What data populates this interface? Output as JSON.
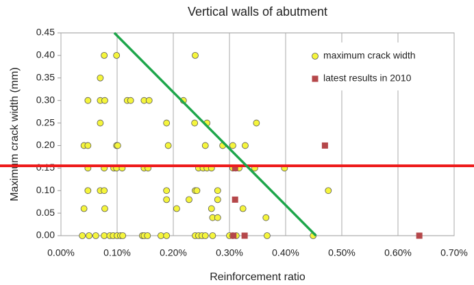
{
  "chart_data": {
    "type": "scatter",
    "title": "Vertical walls of abutment",
    "x_label": "Reinforcement ratio",
    "y_label": "Maximum crack width (mm)",
    "xlim": [
      0,
      0.7
    ],
    "ylim": [
      0,
      0.45
    ],
    "xticks": [
      {
        "value": 0,
        "label": "0.00%"
      },
      {
        "value": 0.1,
        "label": "0.10%"
      },
      {
        "value": 0.2,
        "label": "0.20%"
      },
      {
        "value": 0.3,
        "label": "0.30%"
      },
      {
        "value": 0.4,
        "label": "0.40%"
      },
      {
        "value": 0.5,
        "label": "0.50%"
      },
      {
        "value": 0.6,
        "label": "0.60%"
      },
      {
        "value": 0.7,
        "label": "0.70%"
      }
    ],
    "yticks": [
      {
        "value": 0,
        "label": "0.00"
      },
      0.05,
      {
        "value": 0.1,
        "label": "0.10"
      },
      0.15,
      {
        "value": 0.2,
        "label": "0.20"
      },
      0.25,
      {
        "value": 0.3,
        "label": "0.30"
      },
      0.35,
      {
        "value": 0.4,
        "label": "0.40"
      },
      0.45
    ],
    "grid": "x",
    "legend": "top-right",
    "series": [
      {
        "name": "maximum crack width",
        "color": "#f5f53c",
        "marker": "circle",
        "x": [
          0.038,
          0.05,
          0.062,
          0.077,
          0.087,
          0.093,
          0.1,
          0.106,
          0.11,
          0.145,
          0.148,
          0.154,
          0.178,
          0.188,
          0.239,
          0.245,
          0.251,
          0.257,
          0.27,
          0.3,
          0.306,
          0.312,
          0.367,
          0.449,
          0.27,
          0.279,
          0.365,
          0.041,
          0.078,
          0.206,
          0.268,
          0.324,
          0.188,
          0.228,
          0.279,
          0.048,
          0.07,
          0.077,
          0.188,
          0.239,
          0.242,
          0.279,
          0.476,
          0.048,
          0.077,
          0.094,
          0.099,
          0.109,
          0.148,
          0.155,
          0.245,
          0.253,
          0.26,
          0.268,
          0.306,
          0.311,
          0.317,
          0.345,
          0.398,
          0.041,
          0.048,
          0.099,
          0.101,
          0.191,
          0.257,
          0.288,
          0.306,
          0.328,
          0.07,
          0.188,
          0.238,
          0.26,
          0.348,
          0.048,
          0.07,
          0.078,
          0.118,
          0.124,
          0.148,
          0.157,
          0.218,
          0.07,
          0.077,
          0.099,
          0.239
        ],
        "values": [
          0,
          0,
          0,
          0,
          0,
          0,
          0,
          0,
          0,
          0,
          0,
          0,
          0,
          0,
          0,
          0,
          0,
          0,
          0,
          0,
          0,
          0,
          0,
          0,
          0.04,
          0.04,
          0.04,
          0.06,
          0.06,
          0.06,
          0.06,
          0.06,
          0.08,
          0.08,
          0.08,
          0.1,
          0.1,
          0.1,
          0.1,
          0.1,
          0.1,
          0.1,
          0.1,
          0.15,
          0.15,
          0.15,
          0.15,
          0.15,
          0.15,
          0.15,
          0.15,
          0.15,
          0.15,
          0.15,
          0.15,
          0.15,
          0.15,
          0.15,
          0.15,
          0.2,
          0.2,
          0.2,
          0.2,
          0.2,
          0.2,
          0.2,
          0.2,
          0.2,
          0.25,
          0.25,
          0.25,
          0.25,
          0.25,
          0.3,
          0.3,
          0.3,
          0.3,
          0.3,
          0.3,
          0.3,
          0.3,
          0.35,
          0.4,
          0.4,
          0.4
        ]
      },
      {
        "name": "latest results in 2010",
        "color": "#b5474a",
        "marker": "square",
        "x": [
          0.31,
          0.31,
          0.307,
          0.327,
          0.47,
          0.638
        ],
        "values": [
          0.15,
          0.08,
          0,
          0,
          0.2,
          0
        ]
      }
    ],
    "reference_line": {
      "y": 0.155,
      "color": "#ee1c1c"
    },
    "trend_line": {
      "x": [
        0.095,
        0.454
      ],
      "y": [
        0.45,
        0
      ],
      "color": "#1ea64b"
    }
  }
}
